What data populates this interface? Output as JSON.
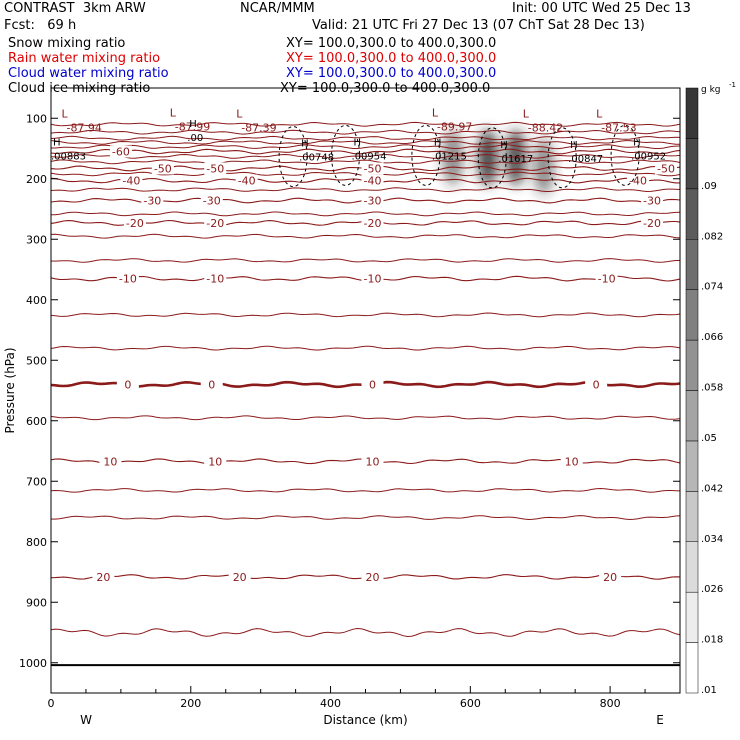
{
  "header": {
    "model": "CONTRAST  3km ARW",
    "center": "NCAR/MMM",
    "init": "Init: 00 UTC Wed 25 Dec 13",
    "fcst": "Fcst:   69 h",
    "valid": "Valid: 21 UTC Fri 27 Dec 13 (07 ChT Sat 28 Dec 13)",
    "fields": [
      {
        "label": "Snow mixing ratio",
        "xy": "XY= 100.0,300.0 to 400.0,300.0",
        "color": "#000000"
      },
      {
        "label": "Rain water mixing ratio",
        "xy": "XY= 100.0,300.0 to 400.0,300.0",
        "color": "#dd0000"
      },
      {
        "label": "Cloud water mixing ratio",
        "xy": "XY= 100.0,300.0 to 400.0,300.0",
        "color": "#0000cc"
      },
      {
        "label": "Cloud ice mixing ratio",
        "xy": "XY= 100.0,300.0 to 400.0,300.0",
        "color": "#000000"
      }
    ]
  },
  "chart_data": {
    "type": "contour",
    "xlabel": "Distance (km)",
    "ylabel": "Pressure (hPa)",
    "xlim": [
      0,
      900
    ],
    "ylim": [
      1050,
      50
    ],
    "xticks": [
      0,
      200,
      400,
      600,
      800
    ],
    "yticks": [
      100,
      200,
      300,
      400,
      500,
      600,
      700,
      800,
      900,
      1000
    ],
    "x_end_labels": {
      "left": "W",
      "right": "E"
    },
    "temperature_contours": [
      {
        "temp": -60,
        "p": 155,
        "labels": [
          [
            100,
            "-60"
          ]
        ]
      },
      {
        "temp": -50,
        "p": 183,
        "labels": [
          [
            160,
            "-50"
          ],
          [
            235,
            "-50"
          ],
          [
            460,
            "-50"
          ],
          [
            880,
            "-50"
          ]
        ]
      },
      {
        "temp": -40,
        "p": 203,
        "labels": [
          [
            115,
            "-40"
          ],
          [
            280,
            "-40"
          ],
          [
            460,
            "-40"
          ],
          [
            840,
            "-40"
          ]
        ]
      },
      {
        "temp": -30,
        "p": 236,
        "labels": [
          [
            145,
            "-30"
          ],
          [
            230,
            "-30"
          ],
          [
            460,
            "-30"
          ],
          [
            860,
            "-30"
          ]
        ]
      },
      {
        "temp": -20,
        "p": 273,
        "labels": [
          [
            120,
            "-20"
          ],
          [
            235,
            "-20"
          ],
          [
            460,
            "-20"
          ],
          [
            860,
            "-20"
          ]
        ]
      },
      {
        "temp": -10,
        "p": 365,
        "labels": [
          [
            110,
            "-10"
          ],
          [
            235,
            "-10"
          ],
          [
            460,
            "-10"
          ],
          [
            795,
            "-10"
          ]
        ]
      },
      {
        "temp": 0,
        "p": 540,
        "labels": [
          [
            110,
            "0"
          ],
          [
            230,
            "0"
          ],
          [
            460,
            "0"
          ],
          [
            780,
            "0"
          ]
        ]
      },
      {
        "temp": 10,
        "p": 667,
        "labels": [
          [
            85,
            "10"
          ],
          [
            235,
            "10"
          ],
          [
            460,
            "10"
          ],
          [
            745,
            "10"
          ]
        ]
      },
      {
        "temp": 20,
        "p": 858,
        "labels": [
          [
            75,
            "20"
          ],
          [
            270,
            "20"
          ],
          [
            460,
            "20"
          ],
          [
            800,
            "20"
          ]
        ]
      }
    ],
    "extra_contour_pressures": [
      110,
      123,
      133,
      140,
      147,
      163,
      172,
      192,
      218,
      258,
      295,
      335,
      425,
      480,
      595,
      715,
      760,
      950
    ],
    "surface_pressure": 1004,
    "lows": [
      {
        "x": 15,
        "p": 112,
        "value": "-87.94"
      },
      {
        "x": 170,
        "p": 110,
        "value": "-87.99"
      },
      {
        "x": 265,
        "p": 112,
        "value": "-87.39"
      },
      {
        "x": 545,
        "p": 110,
        "value": "-89.97"
      },
      {
        "x": 675,
        "p": 112,
        "value": "-88.42"
      },
      {
        "x": 780,
        "p": 112,
        "value": "-87.53"
      }
    ],
    "highs": [
      {
        "x": 195,
        "p": 138,
        "value": ".00"
      },
      {
        "x": 355,
        "p": 170,
        "value": ".00748"
      },
      {
        "x": 430,
        "p": 168,
        "value": ".00954"
      },
      {
        "x": 545,
        "p": 168,
        "value": ".01215"
      },
      {
        "x": 640,
        "p": 172,
        "value": ".01617"
      },
      {
        "x": 740,
        "p": 172,
        "value": ".00847"
      },
      {
        "x": 830,
        "p": 168,
        "value": ".00952"
      },
      {
        "x": 0,
        "p": 168,
        "value": ".00883"
      }
    ],
    "shaded_maxima": [
      {
        "x": 575,
        "p": 165,
        "intensity": 0.55
      },
      {
        "x": 625,
        "p": 165,
        "intensity": 0.85
      },
      {
        "x": 665,
        "p": 165,
        "intensity": 0.8
      },
      {
        "x": 705,
        "p": 180,
        "intensity": 0.55
      }
    ],
    "colorbar": {
      "unit": "g kg",
      "unit_exponent": "-1",
      "levels": [
        ".01",
        ".018",
        ".026",
        ".034",
        ".042",
        ".05",
        ".058",
        ".066",
        ".074",
        ".082",
        ".09"
      ]
    }
  }
}
